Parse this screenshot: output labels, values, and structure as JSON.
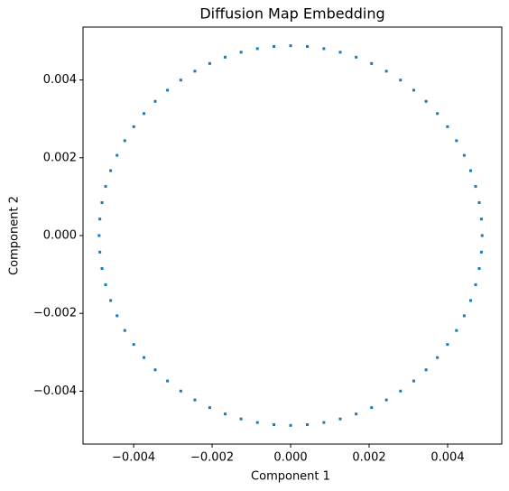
{
  "chart_data": {
    "type": "scatter",
    "title": "Diffusion Map Embedding",
    "xlabel": "Component 1",
    "ylabel": "Component 2",
    "color": "#1f77b4",
    "xlim": [
      -0.00529,
      0.00538
    ],
    "ylim": [
      -0.00536,
      0.00536
    ],
    "xticks": [
      {
        "value": -0.004,
        "label": "−0.004"
      },
      {
        "value": -0.002,
        "label": "−0.002"
      },
      {
        "value": 0,
        "label": "0.000"
      },
      0.002,
      0.004
    ],
    "yticks": [
      {
        "value": -0.004,
        "label": "−0.004"
      },
      {
        "value": -0.002,
        "label": "−0.002"
      },
      {
        "value": 0,
        "label": "0.000"
      },
      0.002,
      0.004
    ],
    "x": [
      0.00488,
      0.004861,
      0.004806,
      0.004714,
      0.004586,
      0.004423,
      0.004226,
      0.003997,
      0.003738,
      0.003451,
      0.003137,
      0.002799,
      0.00244,
      0.002062,
      0.001669,
      0.001263,
      0.000847,
      0.000425,
      0,
      -0.000425,
      -0.000847,
      -0.001263,
      -0.001669,
      -0.002062,
      -0.00244,
      -0.002799,
      -0.003137,
      -0.003451,
      -0.003738,
      -0.003997,
      -0.004226,
      -0.004423,
      -0.004586,
      -0.004714,
      -0.004806,
      -0.004861,
      -0.00488,
      -0.004861,
      -0.004806,
      -0.004714,
      -0.004586,
      -0.004423,
      -0.004226,
      -0.003997,
      -0.003738,
      -0.003451,
      -0.003137,
      -0.002799,
      -0.00244,
      -0.002062,
      -0.001669,
      -0.001263,
      -0.000847,
      -0.000425,
      0,
      0.000425,
      0.000847,
      0.001263,
      0.001669,
      0.002062,
      0.00244,
      0.002799,
      0.003137,
      0.003451,
      0.003738,
      0.003997,
      0.004226,
      0.004423,
      0.004586,
      0.004714,
      0.004806,
      0.004861
    ],
    "y": [
      0,
      0.000425,
      0.000847,
      0.001263,
      0.001669,
      0.002062,
      0.00244,
      0.002799,
      0.003137,
      0.003451,
      0.003738,
      0.003997,
      0.004226,
      0.004423,
      0.004586,
      0.004714,
      0.004806,
      0.004861,
      0.00488,
      0.004861,
      0.004806,
      0.004714,
      0.004586,
      0.004423,
      0.004226,
      0.003997,
      0.003738,
      0.003451,
      0.003137,
      0.002799,
      0.00244,
      0.002062,
      0.001669,
      0.001263,
      0.000847,
      0.000425,
      0,
      -0.000425,
      -0.000847,
      -0.001263,
      -0.001669,
      -0.002062,
      -0.00244,
      -0.002799,
      -0.003137,
      -0.003451,
      -0.003738,
      -0.003997,
      -0.004226,
      -0.004423,
      -0.004586,
      -0.004714,
      -0.004806,
      -0.004861,
      -0.00488,
      -0.004861,
      -0.004806,
      -0.004714,
      -0.004586,
      -0.004423,
      -0.004226,
      -0.003997,
      -0.003738,
      -0.003451,
      -0.003137,
      -0.002799,
      -0.00244,
      -0.002062,
      -0.001669,
      -0.001263,
      -0.000847,
      -0.000425
    ]
  }
}
